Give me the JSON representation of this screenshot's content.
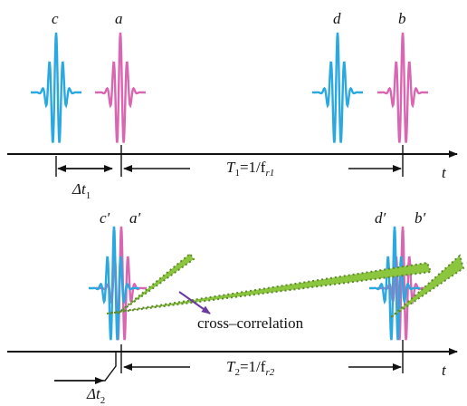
{
  "labels": {
    "c": "c",
    "a": "a",
    "d": "d",
    "b": "b",
    "t1": "t",
    "dt1": [
      "Δt",
      "1"
    ],
    "T1": [
      "T",
      "1",
      "=1/f",
      "r1"
    ],
    "c2": "c′",
    "a2": "a′",
    "d2": "d′",
    "b2": "b′",
    "cross": "cross–correlation",
    "T2": [
      "T",
      "2",
      "=1/f",
      "r2"
    ],
    "dt2": [
      "Δt",
      "2"
    ],
    "t2": "t"
  }
}
